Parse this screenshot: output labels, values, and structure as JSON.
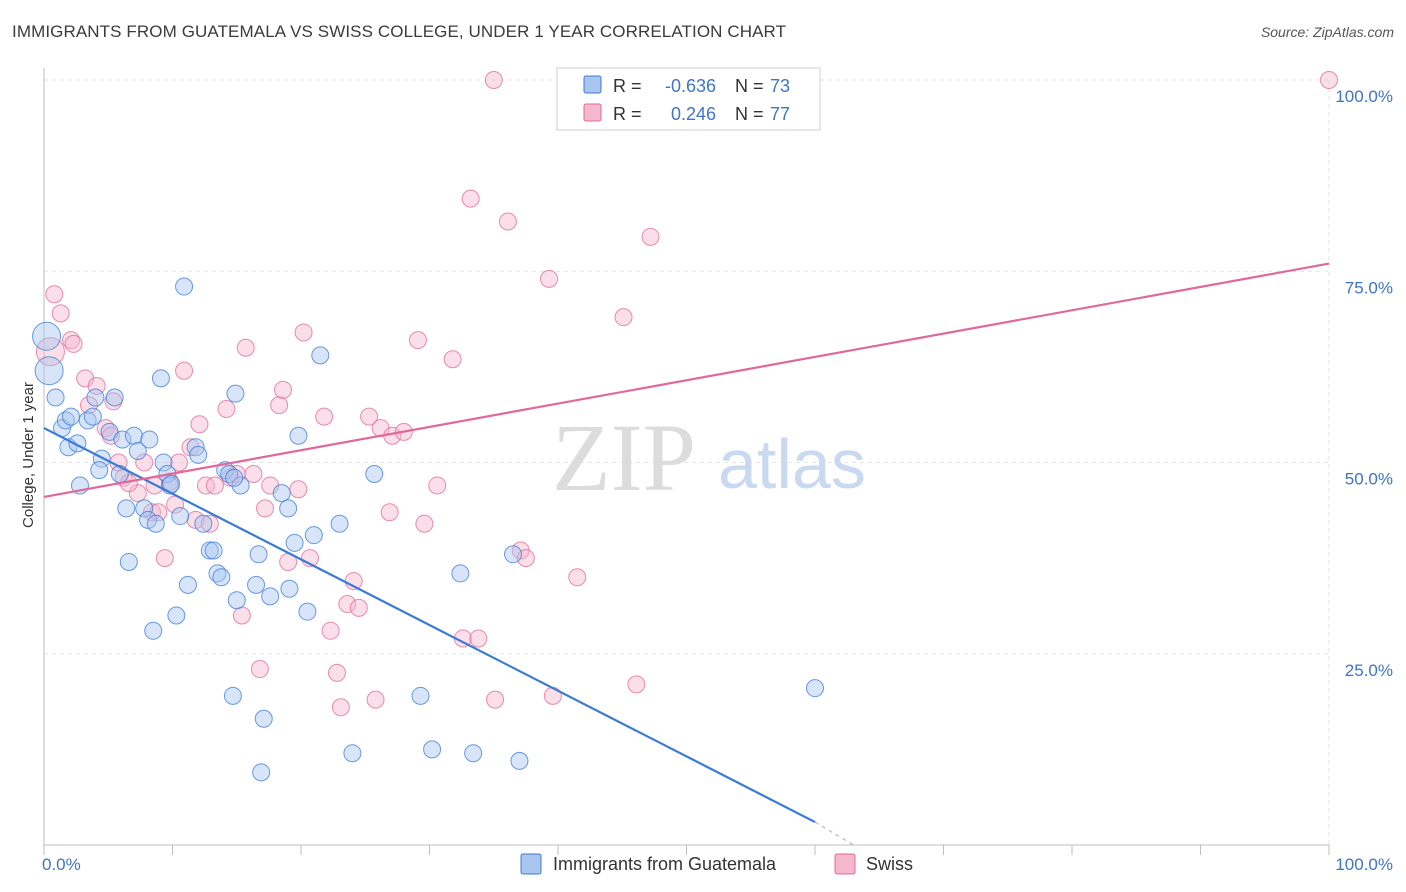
{
  "title": "IMMIGRANTS FROM GUATEMALA VS SWISS COLLEGE, UNDER 1 YEAR CORRELATION CHART",
  "source": "Source: ZipAtlas.com",
  "watermark": {
    "zip": "ZIP",
    "atlas": "atlas"
  },
  "colors": {
    "blue": "#3a7bd5",
    "blue_fill": "#a9c6ef",
    "pink": "#e0689a",
    "pink_fill": "#f5b8cc",
    "tick": "#3f74c9"
  },
  "stats": [
    {
      "r_label": "R =",
      "r_value": "-0.636",
      "n_label": "N =",
      "n_value": "73"
    },
    {
      "r_label": "R =",
      "r_value": "0.246",
      "n_label": "N =",
      "n_value": "77"
    }
  ],
  "chart_data": {
    "type": "scatter",
    "xlabel": "",
    "ylabel": "College, Under 1 year",
    "xlim": [
      0,
      100
    ],
    "ylim": [
      0,
      100
    ],
    "x_tick_labels": [
      "0.0%",
      "100.0%"
    ],
    "y_ticks": [
      {
        "value": 100,
        "label": "100.0%"
      },
      {
        "value": 75,
        "label": "75.0%"
      },
      {
        "value": 50,
        "label": "50.0%"
      },
      {
        "value": 25,
        "label": "25.0%"
      }
    ],
    "grid": true,
    "legend_position": "bottom-center",
    "series": [
      {
        "name": "Immigrants from Guatemala",
        "color": "#3a7bd5",
        "trend": {
          "x0": 0,
          "y0": 54.5,
          "x1": 60,
          "y1": 3,
          "dash_to_x": 63,
          "dash_to_y": 0
        },
        "points": [
          [
            0.2,
            66.5
          ],
          [
            0.4,
            62.0
          ],
          [
            0.9,
            58.5
          ],
          [
            1.4,
            54.5
          ],
          [
            1.7,
            55.5
          ],
          [
            1.9,
            52.0
          ],
          [
            2.1,
            56.0
          ],
          [
            2.6,
            52.5
          ],
          [
            3.4,
            55.5
          ],
          [
            3.8,
            56.0
          ],
          [
            4.0,
            58.5
          ],
          [
            4.5,
            50.5
          ],
          [
            2.8,
            47.0
          ],
          [
            4.3,
            49.0
          ],
          [
            5.1,
            54.0
          ],
          [
            5.5,
            58.5
          ],
          [
            5.9,
            48.5
          ],
          [
            6.1,
            53.0
          ],
          [
            6.4,
            44.0
          ],
          [
            6.6,
            37.0
          ],
          [
            7.0,
            53.5
          ],
          [
            7.3,
            51.5
          ],
          [
            7.8,
            44.0
          ],
          [
            8.1,
            42.5
          ],
          [
            8.2,
            53.0
          ],
          [
            8.5,
            28.0
          ],
          [
            8.7,
            42.0
          ],
          [
            9.1,
            61.0
          ],
          [
            9.3,
            50.0
          ],
          [
            9.6,
            48.5
          ],
          [
            9.8,
            47.0
          ],
          [
            10.3,
            30.0
          ],
          [
            10.6,
            43.0
          ],
          [
            10.9,
            73.0
          ],
          [
            11.2,
            34.0
          ],
          [
            11.8,
            52.0
          ],
          [
            12.0,
            51.0
          ],
          [
            12.4,
            42.0
          ],
          [
            12.9,
            38.5
          ],
          [
            13.2,
            38.5
          ],
          [
            13.5,
            35.5
          ],
          [
            13.8,
            35.0
          ],
          [
            14.1,
            49.0
          ],
          [
            14.4,
            48.5
          ],
          [
            14.7,
            19.5
          ],
          [
            14.9,
            59.0
          ],
          [
            15.0,
            32.0
          ],
          [
            15.3,
            47.0
          ],
          [
            16.5,
            34.0
          ],
          [
            16.7,
            38.0
          ],
          [
            16.9,
            9.5
          ],
          [
            17.1,
            16.5
          ],
          [
            17.6,
            32.5
          ],
          [
            18.5,
            46.0
          ],
          [
            19.0,
            44.0
          ],
          [
            19.1,
            33.5
          ],
          [
            19.5,
            39.5
          ],
          [
            19.8,
            53.5
          ],
          [
            20.5,
            30.5
          ],
          [
            21.0,
            40.5
          ],
          [
            21.5,
            64.0
          ],
          [
            23.0,
            42.0
          ],
          [
            24.0,
            12.0
          ],
          [
            25.7,
            48.5
          ],
          [
            29.3,
            19.5
          ],
          [
            30.2,
            12.5
          ],
          [
            32.4,
            35.5
          ],
          [
            33.4,
            12.0
          ],
          [
            36.5,
            38.0
          ],
          [
            37.0,
            11.0
          ],
          [
            60.0,
            20.5
          ],
          [
            14.8,
            48.0
          ],
          [
            9.9,
            47.2
          ]
        ]
      },
      {
        "name": "Swiss",
        "color": "#e0689a",
        "trend": {
          "x0": 0,
          "y0": 45.5,
          "x1": 100,
          "y1": 76.0
        },
        "points": [
          [
            0.5,
            64.5
          ],
          [
            0.8,
            72.0
          ],
          [
            1.3,
            69.5
          ],
          [
            2.1,
            66.0
          ],
          [
            2.3,
            65.5
          ],
          [
            3.2,
            61.0
          ],
          [
            3.5,
            57.5
          ],
          [
            4.1,
            60.0
          ],
          [
            4.8,
            54.5
          ],
          [
            5.2,
            53.5
          ],
          [
            5.4,
            58.0
          ],
          [
            5.8,
            50.0
          ],
          [
            6.2,
            48.0
          ],
          [
            7.3,
            46.0
          ],
          [
            7.8,
            50.0
          ],
          [
            8.4,
            43.5
          ],
          [
            8.9,
            43.5
          ],
          [
            9.4,
            37.5
          ],
          [
            9.8,
            47.5
          ],
          [
            10.2,
            44.5
          ],
          [
            10.5,
            50.0
          ],
          [
            10.9,
            62.0
          ],
          [
            11.4,
            52.0
          ],
          [
            11.8,
            42.5
          ],
          [
            12.1,
            55.0
          ],
          [
            12.6,
            47.0
          ],
          [
            12.9,
            42.0
          ],
          [
            13.3,
            47.0
          ],
          [
            14.2,
            57.0
          ],
          [
            14.5,
            48.0
          ],
          [
            15.0,
            48.5
          ],
          [
            15.4,
            30.0
          ],
          [
            15.7,
            65.0
          ],
          [
            16.3,
            48.5
          ],
          [
            16.8,
            23.0
          ],
          [
            17.2,
            44.0
          ],
          [
            17.6,
            47.0
          ],
          [
            18.3,
            57.5
          ],
          [
            18.6,
            59.5
          ],
          [
            19.0,
            37.0
          ],
          [
            19.8,
            46.5
          ],
          [
            20.2,
            67.0
          ],
          [
            20.7,
            37.5
          ],
          [
            21.8,
            56.0
          ],
          [
            22.3,
            28.0
          ],
          [
            22.8,
            22.5
          ],
          [
            23.1,
            18.0
          ],
          [
            23.6,
            31.5
          ],
          [
            24.1,
            34.5
          ],
          [
            24.5,
            31.0
          ],
          [
            25.3,
            56.0
          ],
          [
            25.8,
            19.0
          ],
          [
            26.2,
            54.5
          ],
          [
            26.9,
            43.5
          ],
          [
            27.1,
            53.5
          ],
          [
            28.0,
            54.0
          ],
          [
            29.1,
            66.0
          ],
          [
            29.6,
            42.0
          ],
          [
            30.6,
            47.0
          ],
          [
            31.8,
            63.5
          ],
          [
            32.6,
            27.0
          ],
          [
            33.2,
            84.5
          ],
          [
            33.8,
            27.0
          ],
          [
            35.1,
            19.0
          ],
          [
            36.1,
            81.5
          ],
          [
            37.1,
            38.5
          ],
          [
            37.5,
            37.5
          ],
          [
            39.3,
            74.0
          ],
          [
            39.6,
            19.5
          ],
          [
            41.5,
            35.0
          ],
          [
            45.1,
            69.0
          ],
          [
            46.1,
            21.0
          ],
          [
            47.2,
            79.5
          ],
          [
            35.0,
            100.0
          ],
          [
            100.0,
            100.0
          ],
          [
            8.6,
            47.0
          ],
          [
            6.6,
            47.3
          ]
        ]
      }
    ]
  }
}
